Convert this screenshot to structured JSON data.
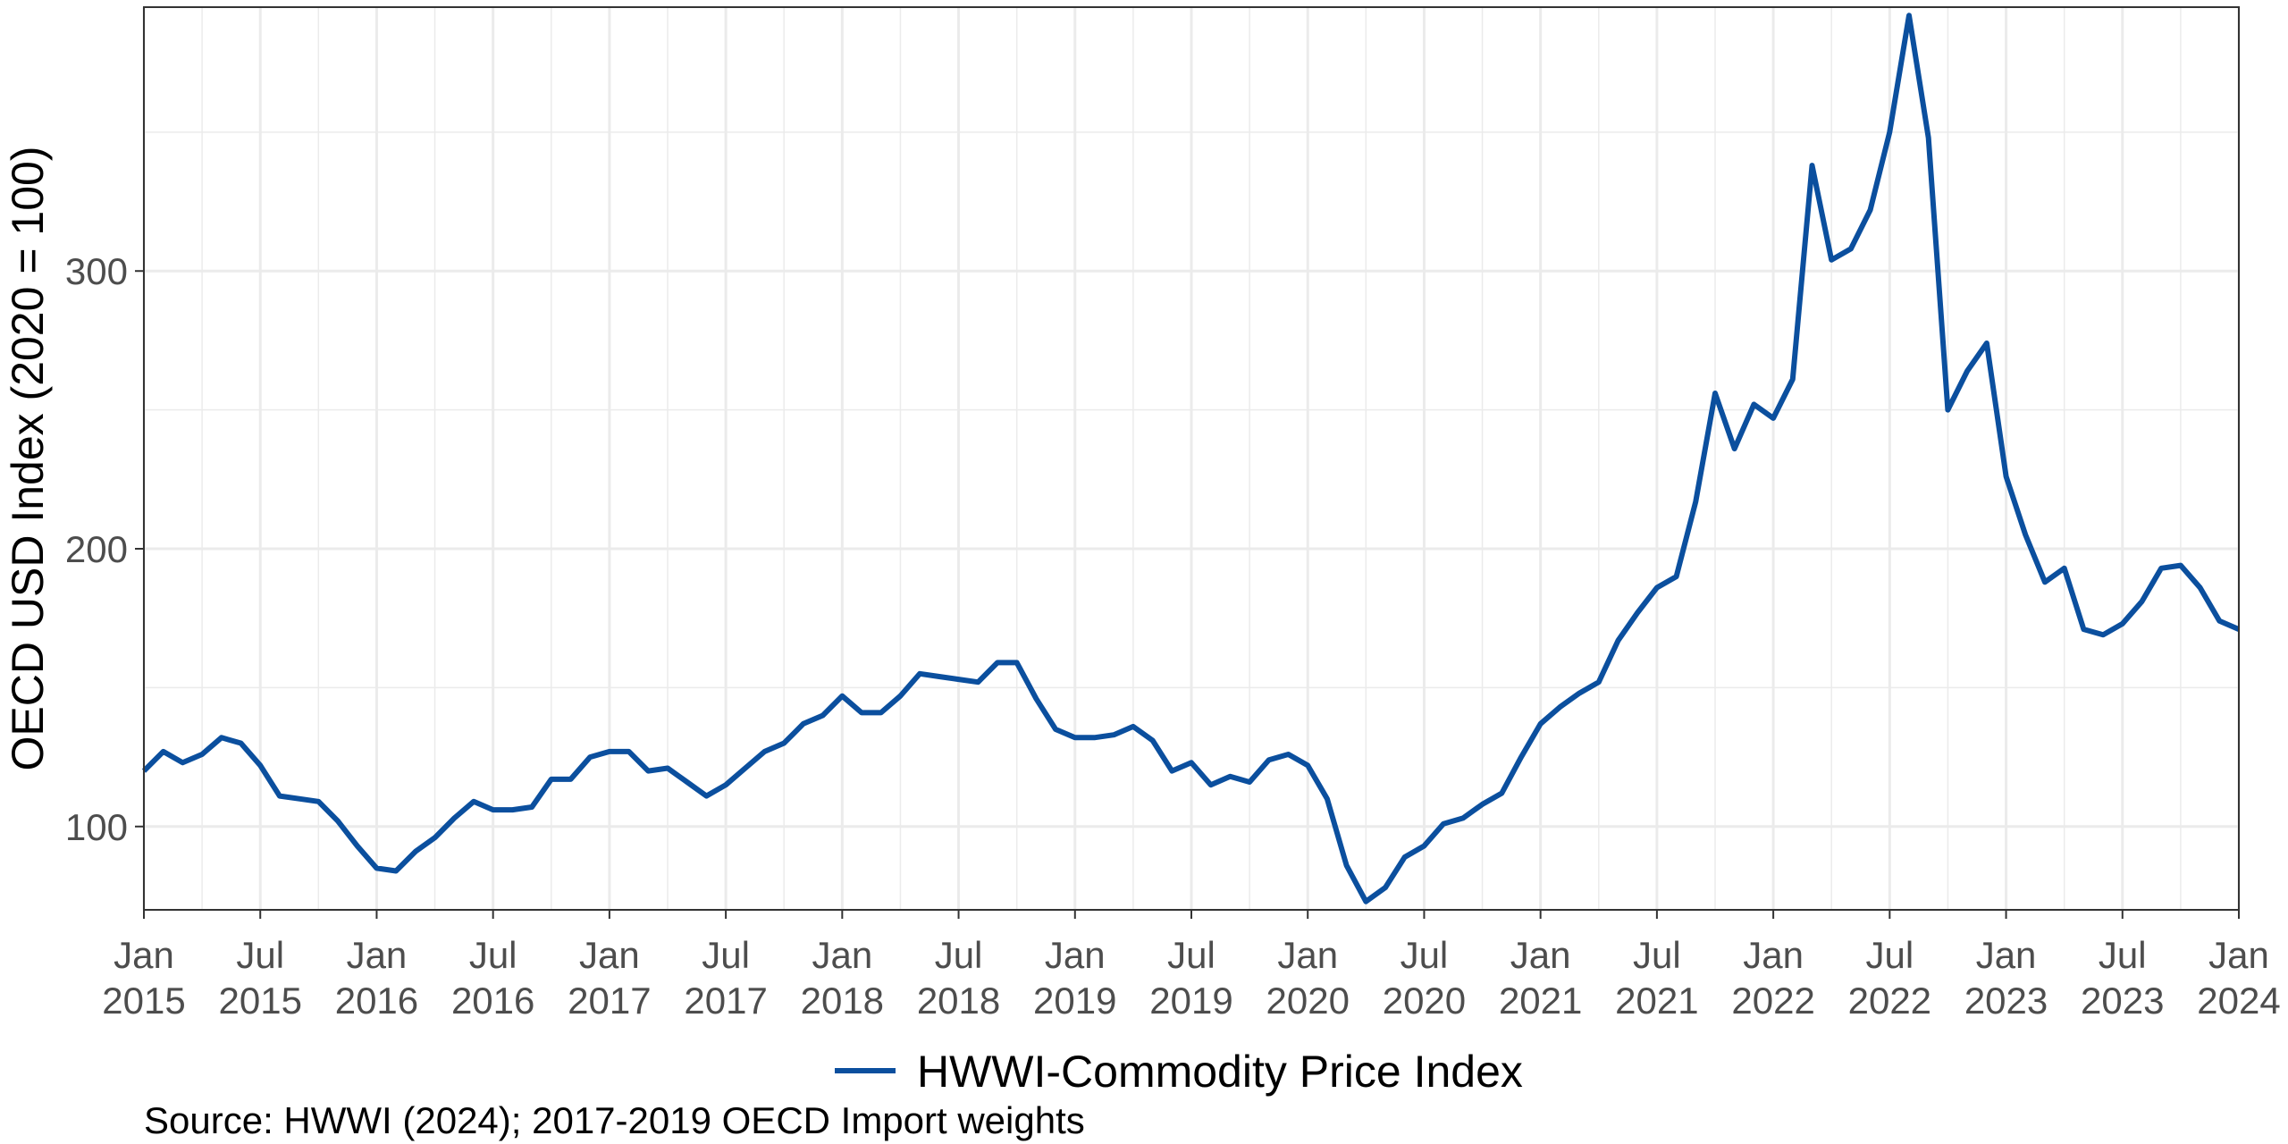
{
  "chart_data": {
    "type": "line",
    "ylabel": "OECD USD Index (2020 = 100)",
    "caption": "Source: HWWI (2024); 2017-2019 OECD Import weights",
    "series": [
      {
        "name": "HWWI-Commodity Price Index",
        "color": "#0b4f9e",
        "points": [
          [
            "2015-01",
            120
          ],
          [
            "2015-02",
            127
          ],
          [
            "2015-03",
            123
          ],
          [
            "2015-04",
            126
          ],
          [
            "2015-05",
            132
          ],
          [
            "2015-06",
            130
          ],
          [
            "2015-07",
            122
          ],
          [
            "2015-08",
            111
          ],
          [
            "2015-09",
            110
          ],
          [
            "2015-10",
            109
          ],
          [
            "2015-11",
            102
          ],
          [
            "2015-12",
            93
          ],
          [
            "2016-01",
            85
          ],
          [
            "2016-02",
            84
          ],
          [
            "2016-03",
            91
          ],
          [
            "2016-04",
            96
          ],
          [
            "2016-05",
            103
          ],
          [
            "2016-06",
            109
          ],
          [
            "2016-07",
            106
          ],
          [
            "2016-08",
            106
          ],
          [
            "2016-09",
            107
          ],
          [
            "2016-10",
            117
          ],
          [
            "2016-11",
            117
          ],
          [
            "2016-12",
            125
          ],
          [
            "2017-01",
            127
          ],
          [
            "2017-02",
            127
          ],
          [
            "2017-03",
            120
          ],
          [
            "2017-04",
            121
          ],
          [
            "2017-05",
            116
          ],
          [
            "2017-06",
            111
          ],
          [
            "2017-07",
            115
          ],
          [
            "2017-08",
            121
          ],
          [
            "2017-09",
            127
          ],
          [
            "2017-10",
            130
          ],
          [
            "2017-11",
            137
          ],
          [
            "2017-12",
            140
          ],
          [
            "2018-01",
            147
          ],
          [
            "2018-02",
            141
          ],
          [
            "2018-03",
            141
          ],
          [
            "2018-04",
            147
          ],
          [
            "2018-05",
            155
          ],
          [
            "2018-06",
            154
          ],
          [
            "2018-07",
            153
          ],
          [
            "2018-08",
            152
          ],
          [
            "2018-09",
            159
          ],
          [
            "2018-10",
            159
          ],
          [
            "2018-11",
            146
          ],
          [
            "2018-12",
            135
          ],
          [
            "2019-01",
            132
          ],
          [
            "2019-02",
            132
          ],
          [
            "2019-03",
            133
          ],
          [
            "2019-04",
            136
          ],
          [
            "2019-05",
            131
          ],
          [
            "2019-06",
            120
          ],
          [
            "2019-07",
            123
          ],
          [
            "2019-08",
            115
          ],
          [
            "2019-09",
            118
          ],
          [
            "2019-10",
            116
          ],
          [
            "2019-11",
            124
          ],
          [
            "2019-12",
            126
          ],
          [
            "2020-01",
            122
          ],
          [
            "2020-02",
            110
          ],
          [
            "2020-03",
            86
          ],
          [
            "2020-04",
            73
          ],
          [
            "2020-05",
            78
          ],
          [
            "2020-06",
            89
          ],
          [
            "2020-07",
            93
          ],
          [
            "2020-08",
            101
          ],
          [
            "2020-09",
            103
          ],
          [
            "2020-10",
            108
          ],
          [
            "2020-11",
            112
          ],
          [
            "2020-12",
            125
          ],
          [
            "2021-01",
            137
          ],
          [
            "2021-02",
            143
          ],
          [
            "2021-03",
            148
          ],
          [
            "2021-04",
            152
          ],
          [
            "2021-05",
            167
          ],
          [
            "2021-06",
            177
          ],
          [
            "2021-07",
            186
          ],
          [
            "2021-08",
            190
          ],
          [
            "2021-09",
            217
          ],
          [
            "2021-10",
            256
          ],
          [
            "2021-11",
            236
          ],
          [
            "2021-12",
            252
          ],
          [
            "2022-01",
            247
          ],
          [
            "2022-02",
            261
          ],
          [
            "2022-03",
            338
          ],
          [
            "2022-04",
            304
          ],
          [
            "2022-05",
            308
          ],
          [
            "2022-06",
            322
          ],
          [
            "2022-07",
            350
          ],
          [
            "2022-08",
            392
          ],
          [
            "2022-09",
            348
          ],
          [
            "2022-10",
            250
          ],
          [
            "2022-11",
            264
          ],
          [
            "2022-12",
            274
          ],
          [
            "2023-01",
            226
          ],
          [
            "2023-02",
            205
          ],
          [
            "2023-03",
            188
          ],
          [
            "2023-04",
            193
          ],
          [
            "2023-05",
            171
          ],
          [
            "2023-06",
            169
          ],
          [
            "2023-07",
            173
          ],
          [
            "2023-08",
            181
          ],
          [
            "2023-09",
            193
          ],
          [
            "2023-10",
            194
          ],
          [
            "2023-11",
            186
          ],
          [
            "2023-12",
            174
          ],
          [
            "2024-01",
            171
          ]
        ]
      }
    ],
    "xlim": [
      "2015-01",
      "2024-01"
    ],
    "ylim": [
      70,
      395
    ],
    "y_ticks": [
      100,
      200,
      300
    ],
    "x_ticks": [
      {
        "date": "2015-01",
        "month": "Jan",
        "year": "2015"
      },
      {
        "date": "2015-07",
        "month": "Jul",
        "year": "2015"
      },
      {
        "date": "2016-01",
        "month": "Jan",
        "year": "2016"
      },
      {
        "date": "2016-07",
        "month": "Jul",
        "year": "2016"
      },
      {
        "date": "2017-01",
        "month": "Jan",
        "year": "2017"
      },
      {
        "date": "2017-07",
        "month": "Jul",
        "year": "2017"
      },
      {
        "date": "2018-01",
        "month": "Jan",
        "year": "2018"
      },
      {
        "date": "2018-07",
        "month": "Jul",
        "year": "2018"
      },
      {
        "date": "2019-01",
        "month": "Jan",
        "year": "2019"
      },
      {
        "date": "2019-07",
        "month": "Jul",
        "year": "2019"
      },
      {
        "date": "2020-01",
        "month": "Jan",
        "year": "2020"
      },
      {
        "date": "2020-07",
        "month": "Jul",
        "year": "2020"
      },
      {
        "date": "2021-01",
        "month": "Jan",
        "year": "2021"
      },
      {
        "date": "2021-07",
        "month": "Jul",
        "year": "2021"
      },
      {
        "date": "2022-01",
        "month": "Jan",
        "year": "2022"
      },
      {
        "date": "2022-07",
        "month": "Jul",
        "year": "2022"
      },
      {
        "date": "2023-01",
        "month": "Jan",
        "year": "2023"
      },
      {
        "date": "2023-07",
        "month": "Jul",
        "year": "2023"
      },
      {
        "date": "2024-01",
        "month": "Jan",
        "year": "2024"
      }
    ],
    "grid": true,
    "legend_position": "bottom",
    "gridline_color": "#ebebeb",
    "panel_border_color": "#333333"
  }
}
